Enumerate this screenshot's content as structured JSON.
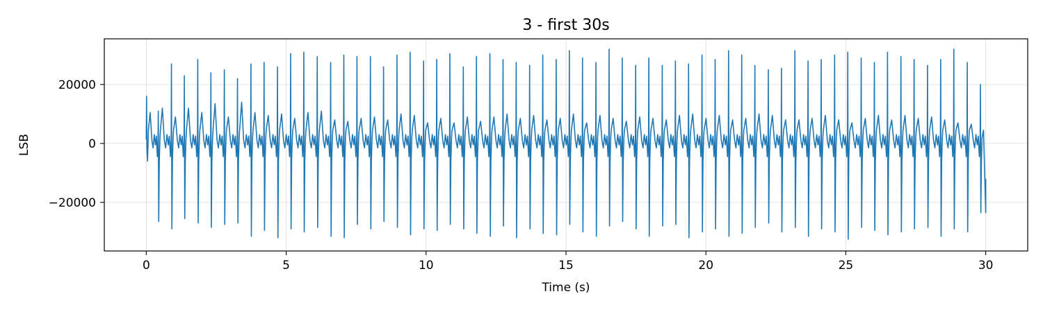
{
  "chart_data": {
    "type": "line",
    "title": "3 - first 30s",
    "xlabel": "Time (s)",
    "ylabel": "LSB",
    "xlim": [
      -1.5,
      31.5
    ],
    "ylim": [
      -36500,
      35500
    ],
    "xticks": [
      0,
      5,
      10,
      15,
      20,
      25,
      30
    ],
    "xtick_labels": [
      "0",
      "5",
      "10",
      "15",
      "20",
      "25",
      "30"
    ],
    "yticks": [
      -20000,
      0,
      20000
    ],
    "ytick_labels": [
      "−20000",
      "0",
      "20000"
    ],
    "grid": true,
    "line_color": "#1f77b4",
    "series": [
      {
        "x_start": 0,
        "x_end": 30,
        "beat_times": [
          0.0,
          0.42,
          0.89,
          1.35,
          1.83,
          2.3,
          2.78,
          3.25,
          3.73,
          4.2,
          4.68,
          5.15,
          5.62,
          6.1,
          6.58,
          7.05,
          7.52,
          8.0,
          8.47,
          8.95,
          9.42,
          9.9,
          10.37,
          10.84,
          11.32,
          11.79,
          12.27,
          12.74,
          13.21,
          13.69,
          14.16,
          14.64,
          15.11,
          15.58,
          16.06,
          16.53,
          17.0,
          17.48,
          17.95,
          18.43,
          18.9,
          19.37,
          19.85,
          20.32,
          20.8,
          21.27,
          21.74,
          22.22,
          22.69,
          23.17,
          23.64,
          24.11,
          24.59,
          25.06,
          25.54,
          26.01,
          26.48,
          26.96,
          27.43,
          27.91,
          28.38,
          28.85,
          29.33,
          29.8
        ],
        "peak_values": [
          16000,
          11000,
          27000,
          23000,
          28500,
          24000,
          25000,
          22000,
          27000,
          27500,
          26000,
          30500,
          31000,
          29500,
          27500,
          30000,
          29500,
          29500,
          26000,
          30000,
          31000,
          28000,
          28500,
          30500,
          26000,
          29500,
          30500,
          28500,
          27500,
          26500,
          30000,
          28500,
          31500,
          29000,
          27500,
          32000,
          29000,
          26500,
          29000,
          26500,
          28000,
          27000,
          30000,
          28500,
          31500,
          30000,
          26500,
          25000,
          25500,
          31500,
          28000,
          28500,
          30000,
          31000,
          29000,
          27500,
          31000,
          29500,
          28500,
          26500,
          28500,
          32000,
          27500,
          20000
        ],
        "trough_values": [
          -2000,
          -26500,
          -29000,
          -25500,
          -27000,
          -28500,
          -27500,
          -27000,
          -31500,
          -29500,
          -32000,
          -29000,
          -30000,
          -28500,
          -31500,
          -32000,
          -27500,
          -29000,
          -26500,
          -28500,
          -31000,
          -29000,
          -29500,
          -27500,
          -29000,
          -30500,
          -31500,
          -28000,
          -32000,
          -29000,
          -30500,
          -31000,
          -27500,
          -30000,
          -31500,
          -28000,
          -26500,
          -29000,
          -31500,
          -28000,
          -27500,
          -32000,
          -30000,
          -29000,
          -31500,
          -30500,
          -28500,
          -27000,
          -30000,
          -28500,
          -31500,
          -29000,
          -30000,
          -32500,
          -28500,
          -29500,
          -31000,
          -30000,
          -29000,
          -28500,
          -31500,
          -29000,
          -30000,
          -23500
        ],
        "t_wave_values": [
          10500,
          12000,
          9000,
          12000,
          10500,
          13500,
          9000,
          14000,
          10500,
          9500,
          10000,
          8500,
          10500,
          11000,
          8000,
          7500,
          8500,
          9000,
          8000,
          10000,
          9500,
          7000,
          8500,
          7000,
          9000,
          7500,
          9000,
          10000,
          8500,
          9500,
          8000,
          8500,
          10000,
          7000,
          9500,
          8500,
          7500,
          9000,
          8500,
          8000,
          9500,
          10000,
          8500,
          9500,
          8000,
          8500,
          10000,
          9500,
          8000,
          8000,
          8500,
          9500,
          8000,
          7000,
          8500,
          9500,
          8000,
          9500,
          8500,
          9000,
          8000,
          7000,
          6500,
          5000
        ]
      }
    ]
  }
}
